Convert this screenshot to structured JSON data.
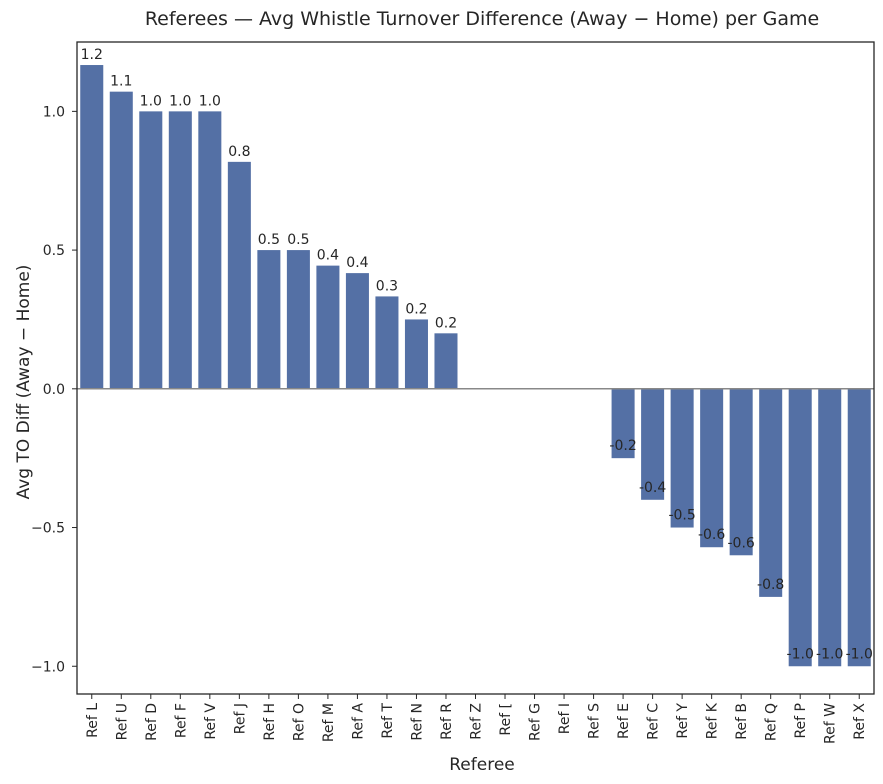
{
  "chart_data": {
    "type": "bar",
    "title": "Referees — Avg Whistle Turnover Difference (Away − Home) per Game",
    "xlabel": "Referee",
    "ylabel": "Avg TO Diff (Away − Home)",
    "ylim": [
      -1.1,
      1.25
    ],
    "yticks": [
      -1.0,
      -0.5,
      0.0,
      0.5,
      1.0
    ],
    "ytick_labels": [
      "−1.0",
      "−0.5",
      "0.0",
      "0.5",
      "1.0"
    ],
    "grid": false,
    "bar_color": "#5470a5",
    "categories": [
      "Ref L",
      "Ref U",
      "Ref D",
      "Ref F",
      "Ref V",
      "Ref J",
      "Ref H",
      "Ref O",
      "Ref M",
      "Ref A",
      "Ref T",
      "Ref N",
      "Ref R",
      "Ref Z",
      "Ref [",
      "Ref G",
      "Ref I",
      "Ref S",
      "Ref E",
      "Ref C",
      "Ref Y",
      "Ref K",
      "Ref B",
      "Ref Q",
      "Ref P",
      "Ref W",
      "Ref X"
    ],
    "values": [
      1.167,
      1.071,
      1.0,
      1.0,
      1.0,
      0.818,
      0.5,
      0.5,
      0.444,
      0.417,
      0.333,
      0.25,
      0.2,
      0,
      0,
      0,
      0,
      0,
      -0.25,
      -0.4,
      -0.5,
      -0.571,
      -0.6,
      -0.75,
      -1.0,
      -1.0,
      -1.0
    ],
    "labels": [
      "1.2",
      "1.1",
      "1.0",
      "1.0",
      "1.0",
      "0.8",
      "0.5",
      "0.5",
      "0.4",
      "0.4",
      "0.3",
      "0.2",
      "0.2",
      "",
      "",
      "",
      "",
      "",
      "-0.2",
      "-0.4",
      "-0.5",
      "-0.6",
      "-0.6",
      "-0.8",
      "-1.0",
      "-1.0",
      "-1.0"
    ]
  }
}
